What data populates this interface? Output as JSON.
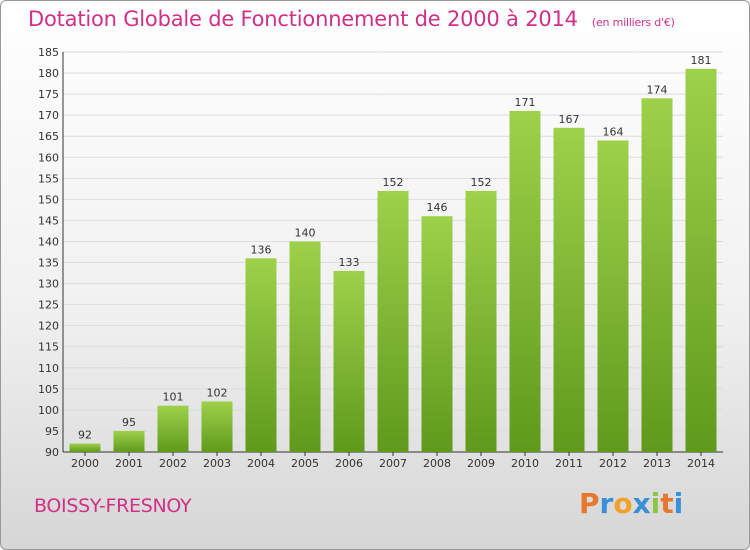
{
  "title": "Dotation Globale de Fonctionnement de 2000 à 2014",
  "subtitle": "(en milliers d'€)",
  "commune": "BOISSY-FRESNOY",
  "logo": {
    "letters": [
      "P",
      "r",
      "o",
      "x",
      "i",
      "t",
      "i"
    ],
    "colors": [
      "#e8772e",
      "#3a8fd6",
      "#f0a12a",
      "#3a8fd6",
      "#8cc63f",
      "#e8772e",
      "#3a8fd6"
    ]
  },
  "chart_data": {
    "type": "bar",
    "categories": [
      "2000",
      "2001",
      "2002",
      "2003",
      "2004",
      "2005",
      "2006",
      "2007",
      "2008",
      "2009",
      "2010",
      "2011",
      "2012",
      "2013",
      "2014"
    ],
    "values": [
      92,
      95,
      101,
      102,
      136,
      140,
      133,
      152,
      146,
      152,
      171,
      167,
      164,
      174,
      181
    ],
    "ylim": [
      90,
      185
    ],
    "yticks": [
      90,
      95,
      100,
      105,
      110,
      115,
      120,
      125,
      130,
      135,
      140,
      145,
      150,
      155,
      160,
      165,
      170,
      175,
      180,
      185
    ],
    "bar_color": "#7cbb2f",
    "grid": true,
    "xlabel": "",
    "ylabel": ""
  }
}
